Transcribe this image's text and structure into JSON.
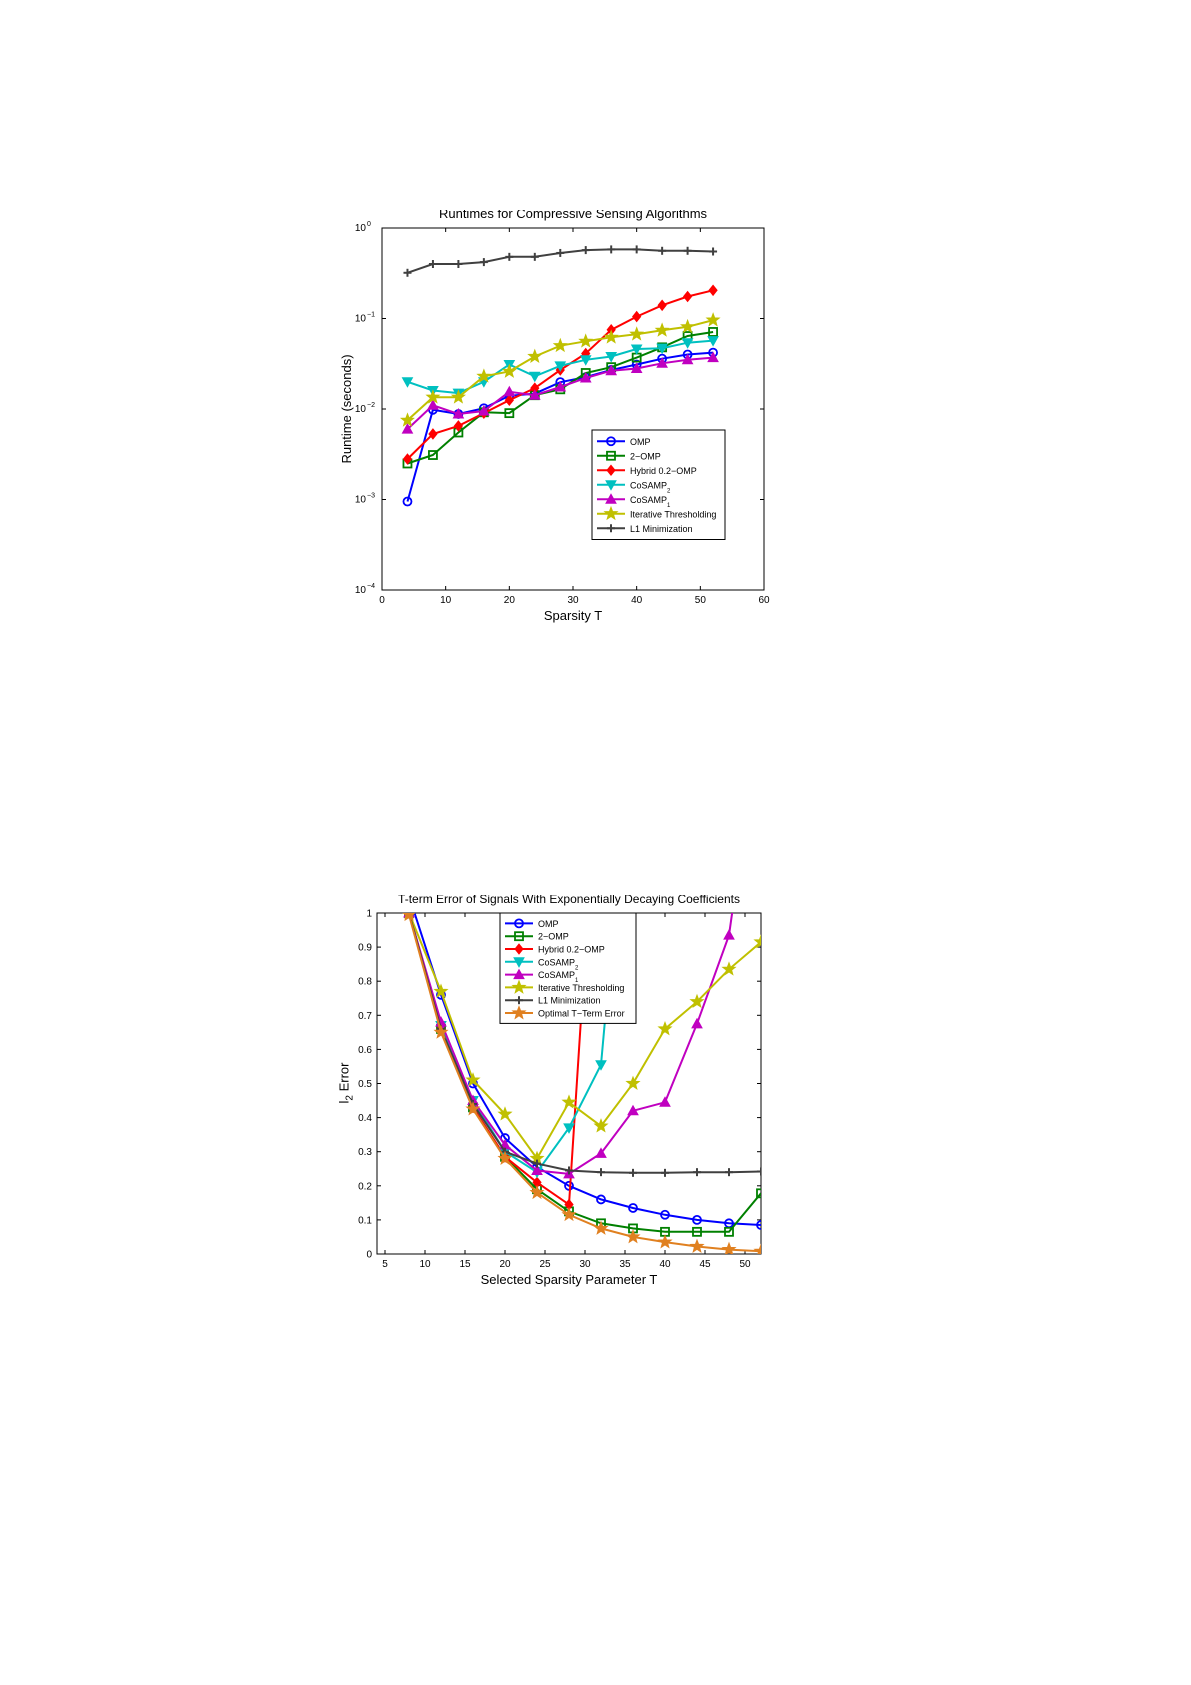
{
  "chart_data": [
    {
      "type": "line",
      "title": "Runtimes for Compressive Sensing Algorithms",
      "xlabel": "Sparsity T",
      "ylabel": "Runtime (seconds)",
      "xlim": [
        0,
        60
      ],
      "ylim": [
        0.0001,
        1
      ],
      "y_scale": "log",
      "xticks": [
        "0",
        "10",
        "20",
        "30",
        "40",
        "50",
        "60"
      ],
      "yticks": [
        {
          "base": "10",
          "exp": "0"
        },
        {
          "base": "10",
          "exp": "−1"
        },
        {
          "base": "10",
          "exp": "−2"
        },
        {
          "base": "10",
          "exp": "−3"
        },
        {
          "base": "10",
          "exp": "−4"
        }
      ],
      "grid": false,
      "legend_position": "lower-right",
      "x": [
        4,
        8,
        12,
        16,
        20,
        24,
        28,
        32,
        36,
        40,
        44,
        48,
        52
      ],
      "series": [
        {
          "name": "OMP",
          "legend": {
            "main": "OMP"
          },
          "color": "#0000ff",
          "marker": "circle",
          "values": [
            0.00095,
            0.0098,
            0.0088,
            0.0102,
            0.014,
            0.0148,
            0.0198,
            0.0225,
            0.027,
            0.031,
            0.036,
            0.04,
            0.042
          ]
        },
        {
          "name": "2-OMP",
          "legend": {
            "main": "2−OMP"
          },
          "color": "#008000",
          "marker": "square",
          "values": [
            0.0025,
            0.0031,
            0.0055,
            0.0092,
            0.009,
            0.0142,
            0.0165,
            0.025,
            0.029,
            0.037,
            0.048,
            0.064,
            0.071
          ]
        },
        {
          "name": "Hybrid 0.2-OMP",
          "legend": {
            "main": "Hybrid 0.2−OMP"
          },
          "color": "#ff0000",
          "marker": "diamond",
          "values": [
            0.0028,
            0.0053,
            0.0065,
            0.009,
            0.0125,
            0.017,
            0.027,
            0.041,
            0.075,
            0.105,
            0.14,
            0.175,
            0.205
          ]
        },
        {
          "name": "CoSAMP2",
          "legend": {
            "main": "CoSAMP",
            "sub": "2"
          },
          "color": "#00c0c0",
          "marker": "triangle-down",
          "values": [
            0.02,
            0.016,
            0.015,
            0.02,
            0.031,
            0.023,
            0.03,
            0.035,
            0.038,
            0.046,
            0.047,
            0.054,
            0.057
          ]
        },
        {
          "name": "CoSAMP1",
          "legend": {
            "main": "CoSAMP",
            "sub": "1"
          },
          "color": "#c000c0",
          "marker": "triangle-up",
          "values": [
            0.006,
            0.011,
            0.0088,
            0.0095,
            0.0155,
            0.0142,
            0.0175,
            0.022,
            0.0265,
            0.028,
            0.032,
            0.035,
            0.037
          ]
        },
        {
          "name": "Iterative Thresholding",
          "legend": {
            "main": "Iterative Thresholding"
          },
          "color": "#c0c000",
          "marker": "star",
          "values": [
            0.0075,
            0.0135,
            0.0135,
            0.023,
            0.026,
            0.038,
            0.05,
            0.056,
            0.062,
            0.067,
            0.074,
            0.081,
            0.096
          ]
        },
        {
          "name": "L1 Minimization",
          "legend": {
            "main": "L1 Minimization"
          },
          "color": "#404040",
          "marker": "plus",
          "values": [
            0.32,
            0.4,
            0.4,
            0.42,
            0.48,
            0.48,
            0.53,
            0.57,
            0.58,
            0.58,
            0.56,
            0.56,
            0.55
          ]
        }
      ]
    },
    {
      "type": "line",
      "title": "T-term Error of Signals With Exponentially Decaying Coefficients",
      "xlabel": "Selected Sparsity Parameter T",
      "ylabel": {
        "main": "l",
        "sub": "2",
        "rest": " Error"
      },
      "xlim": [
        4,
        52
      ],
      "ylim": [
        0,
        1
      ],
      "xticks": [
        "5",
        "10",
        "15",
        "20",
        "25",
        "30",
        "35",
        "40",
        "45",
        "50"
      ],
      "yticks": [
        "0",
        "0.1",
        "0.2",
        "0.3",
        "0.4",
        "0.5",
        "0.6",
        "0.7",
        "0.8",
        "0.9",
        "1"
      ],
      "grid": false,
      "legend_position": "top-center",
      "x": [
        8,
        12,
        16,
        20,
        24,
        28,
        32,
        36,
        40,
        44,
        48,
        52
      ],
      "series": [
        {
          "name": "OMP",
          "legend": {
            "main": "OMP"
          },
          "color": "#0000ff",
          "marker": "circle",
          "values": [
            1.05,
            0.76,
            0.5,
            0.34,
            0.255,
            0.2,
            0.16,
            0.135,
            0.115,
            0.1,
            0.09,
            0.085
          ]
        },
        {
          "name": "2-OMP",
          "legend": {
            "main": "2−OMP"
          },
          "color": "#008000",
          "marker": "square",
          "values": [
            1.0,
            0.66,
            0.43,
            0.285,
            0.19,
            0.125,
            0.09,
            0.075,
            0.065,
            0.065,
            0.065,
            0.178
          ]
        },
        {
          "name": "Hybrid 0.2-OMP",
          "legend": {
            "main": "Hybrid 0.2−OMP"
          },
          "color": "#ff0000",
          "marker": "diamond",
          "values": [
            1.0,
            0.66,
            0.43,
            0.285,
            0.21,
            0.145,
            1.6,
            null,
            null,
            null,
            null,
            null
          ]
        },
        {
          "name": "CoSAMP2",
          "legend": {
            "main": "CoSAMP",
            "sub": "2"
          },
          "color": "#00c0c0",
          "marker": "triangle-down",
          "values": [
            1.0,
            0.67,
            0.45,
            0.3,
            0.24,
            0.37,
            0.555,
            1.6,
            null,
            null,
            null,
            null
          ]
        },
        {
          "name": "CoSAMP1",
          "legend": {
            "main": "CoSAMP",
            "sub": "1"
          },
          "color": "#c000c0",
          "marker": "triangle-up",
          "values": [
            1.0,
            0.68,
            0.45,
            0.32,
            0.245,
            0.235,
            0.295,
            0.42,
            0.445,
            0.675,
            0.935,
            1.6
          ]
        },
        {
          "name": "Iterative Thresholding",
          "legend": {
            "main": "Iterative Thresholding"
          },
          "color": "#c0c000",
          "marker": "star",
          "values": [
            1.0,
            0.77,
            0.51,
            0.41,
            0.28,
            0.445,
            0.375,
            0.5,
            0.66,
            0.74,
            0.835,
            0.915
          ]
        },
        {
          "name": "L1 Minimization",
          "legend": {
            "main": "L1 Minimization"
          },
          "color": "#404040",
          "marker": "plus",
          "values": [
            1.0,
            0.66,
            0.44,
            0.3,
            0.265,
            0.245,
            0.24,
            0.238,
            0.238,
            0.24,
            0.24,
            0.242
          ]
        },
        {
          "name": "Optimal T-Term Error",
          "legend": {
            "main": "Optimal T−Term Error"
          },
          "color": "#e08020",
          "marker": "star",
          "values": [
            0.995,
            0.65,
            0.425,
            0.28,
            0.18,
            0.115,
            0.075,
            0.05,
            0.035,
            0.022,
            0.013,
            0.008
          ]
        }
      ]
    }
  ]
}
